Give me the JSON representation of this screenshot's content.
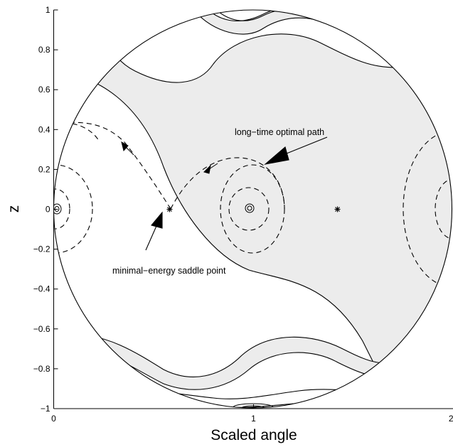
{
  "chart_data": {
    "type": "contour",
    "xlabel": "Scaled angle",
    "ylabel": "z",
    "xlim": [
      0,
      2
    ],
    "ylim": [
      -1,
      1
    ],
    "x_ticks": [
      {
        "value": 0,
        "label": "0"
      },
      {
        "value": 1,
        "label": "1"
      },
      {
        "value": 2,
        "label": "2"
      }
    ],
    "y_ticks": [
      {
        "value": 1,
        "label": "1"
      },
      {
        "value": 0.8,
        "label": "0.8"
      },
      {
        "value": 0.6,
        "label": "0.6"
      },
      {
        "value": 0.4,
        "label": "0.4"
      },
      {
        "value": 0.2,
        "label": "0.2"
      },
      {
        "value": 0,
        "label": "0"
      },
      {
        "value": -0.2,
        "label": "−0.2"
      },
      {
        "value": -0.4,
        "label": "−0.4"
      },
      {
        "value": -0.6,
        "label": "−0.6"
      },
      {
        "value": -0.8,
        "label": "−0.8"
      },
      {
        "value": -1,
        "label": "−1"
      }
    ],
    "grid": false,
    "saddle_points": [
      {
        "x": 0.58,
        "y": 0
      },
      {
        "x": 1.42,
        "y": 0
      }
    ],
    "annotations": [
      {
        "text": "long−time optimal path",
        "points_to": {
          "x": 1.08,
          "y": 0.21
        }
      },
      {
        "text": "minimal−energy saddle point",
        "points_to": {
          "x": 0.55,
          "y": -0.03
        }
      }
    ],
    "colors": {
      "shaded_region": "#ececec",
      "lines": "#000000",
      "background": "#ffffff"
    }
  }
}
